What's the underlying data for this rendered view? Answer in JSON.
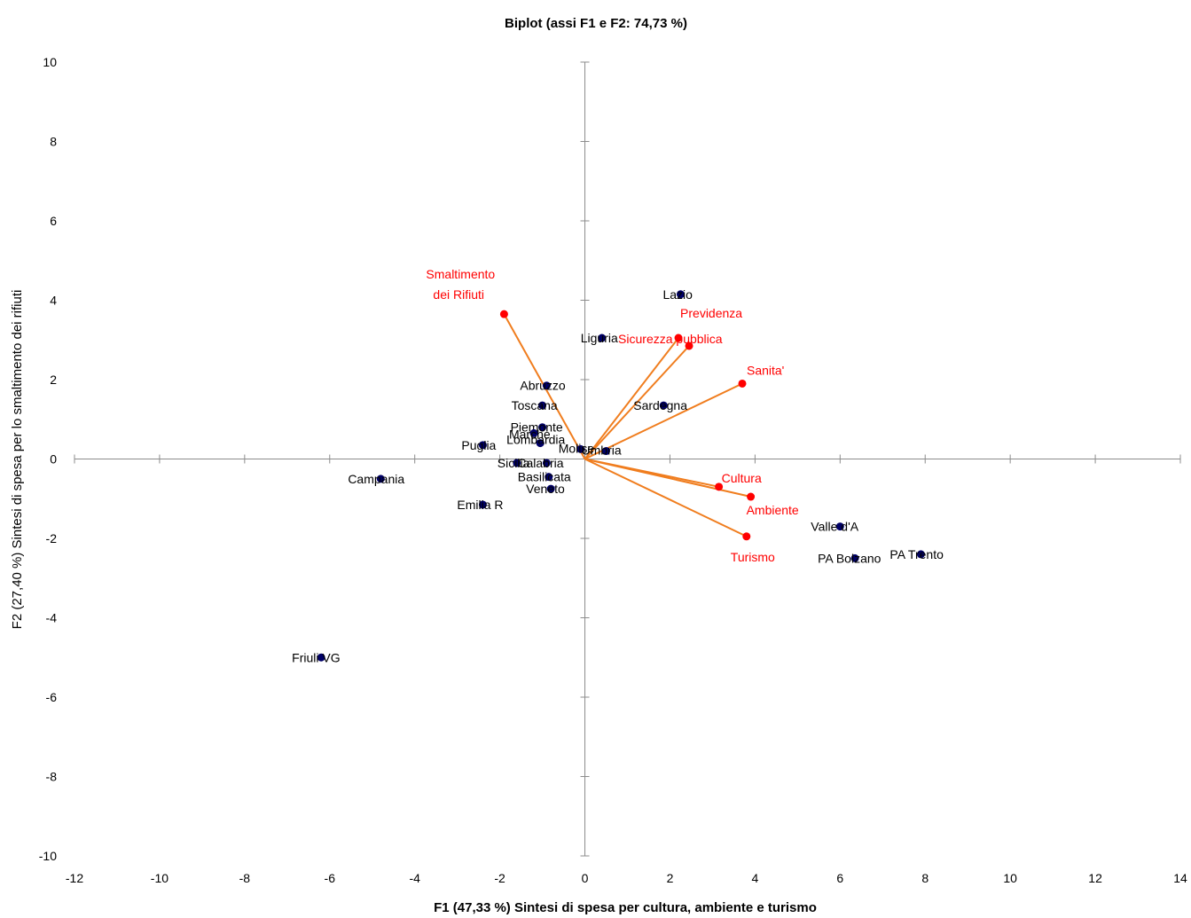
{
  "chart_data": {
    "type": "scatter",
    "title": "Biplot (assi F1 e F2: 74,73 %)",
    "xlabel": "F1 (47,33 %) Sintesi di spesa per cultura, ambiente e turismo",
    "ylabel": "F2 (27,40 %) Sintesi di spesa per lo smaltimento dei rifiuti",
    "xlim": [
      -12,
      14
    ],
    "ylim": [
      -10,
      10
    ],
    "xticks": [
      "-12",
      "-10",
      "-8",
      "-6",
      "-4",
      "-2",
      "0",
      "2",
      "4",
      "6",
      "8",
      "10",
      "12",
      "14"
    ],
    "yticks": [
      "-10",
      "-8",
      "-6",
      "-4",
      "-2",
      "0",
      "2",
      "4",
      "6",
      "8",
      "10"
    ],
    "grid": false,
    "colors": {
      "observations": "#000066",
      "variables": "#ff0000",
      "vectors": "#f07d1e",
      "axis": "#8c8c8c"
    },
    "observations": [
      {
        "name": "Lazio",
        "x": 2.25,
        "y": 4.15
      },
      {
        "name": "Liguria",
        "x": 0.4,
        "y": 3.05
      },
      {
        "name": "Sardegna",
        "x": 1.85,
        "y": 1.35
      },
      {
        "name": "Abruzzo",
        "x": -0.9,
        "y": 1.85
      },
      {
        "name": "Toscana",
        "x": -1.0,
        "y": 1.35
      },
      {
        "name": "Piemonte",
        "x": -1.0,
        "y": 0.8
      },
      {
        "name": "Marche",
        "x": -1.2,
        "y": 0.65
      },
      {
        "name": "Puglia",
        "x": -2.4,
        "y": 0.35
      },
      {
        "name": "Lombardia",
        "x": -1.05,
        "y": 0.4
      },
      {
        "name": "Molise",
        "x": -0.1,
        "y": 0.25
      },
      {
        "name": "Umbria",
        "x": 0.5,
        "y": 0.2
      },
      {
        "name": "Sicilia",
        "x": -1.6,
        "y": -0.1
      },
      {
        "name": "Calabria",
        "x": -0.9,
        "y": -0.1
      },
      {
        "name": "Basilicata",
        "x": -0.85,
        "y": -0.45
      },
      {
        "name": "Veneto",
        "x": -0.8,
        "y": -0.75
      },
      {
        "name": "Campania",
        "x": -4.8,
        "y": -0.5
      },
      {
        "name": "Emilia R",
        "x": -2.4,
        "y": -1.15
      },
      {
        "name": "Valle d'A",
        "x": 6.0,
        "y": -1.7
      },
      {
        "name": "PA Bolzano",
        "x": 6.35,
        "y": -2.5
      },
      {
        "name": "PA Trento",
        "x": 7.9,
        "y": -2.4
      },
      {
        "name": "Friuli VG",
        "x": -6.2,
        "y": -5.0
      }
    ],
    "variables": [
      {
        "name": "Smaltimento dei Rifiuti",
        "lines": [
          "Smaltimento",
          "dei Rifiuti"
        ],
        "x": -1.9,
        "y": 3.65
      },
      {
        "name": "Previdenza",
        "lines": [
          "Previdenza"
        ],
        "x": 2.45,
        "y": 2.85
      },
      {
        "name": "Sicurezza pubblica",
        "lines": [
          "Sicurezza pubblica"
        ],
        "x": 2.2,
        "y": 3.05
      },
      {
        "name": "Sanita'",
        "lines": [
          "Sanita'"
        ],
        "x": 3.7,
        "y": 1.9
      },
      {
        "name": "Cultura",
        "lines": [
          "Cultura"
        ],
        "x": 3.15,
        "y": -0.7
      },
      {
        "name": "Ambiente",
        "lines": [
          "Ambiente"
        ],
        "x": 3.9,
        "y": -0.95
      },
      {
        "name": "Turismo",
        "lines": [
          "Turismo"
        ],
        "x": 3.8,
        "y": -1.95
      }
    ]
  }
}
